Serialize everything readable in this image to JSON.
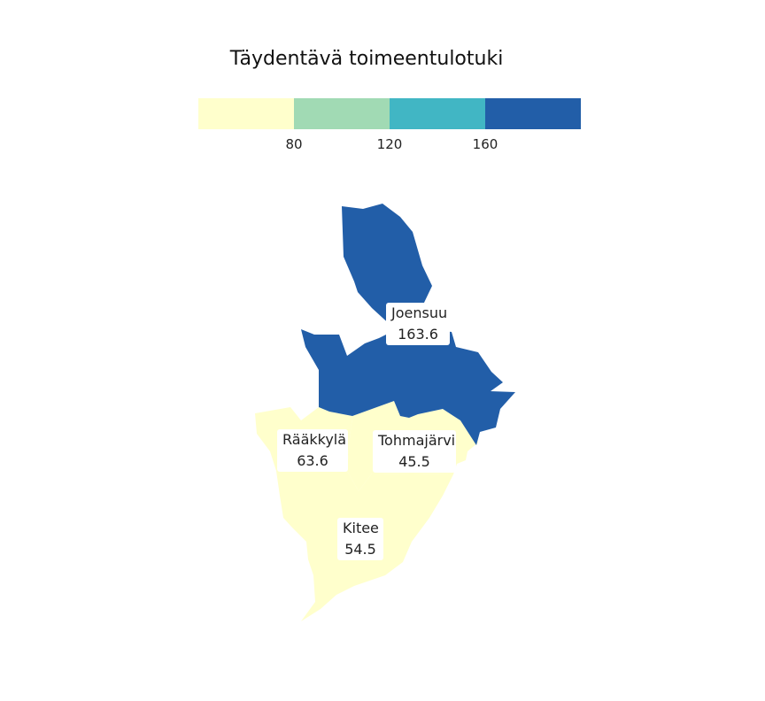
{
  "title": "Täydentävä toimeentulotuki",
  "legend": {
    "colors": [
      "#ffffcc",
      "#a1dab4",
      "#41b6c4",
      "#225ea8"
    ],
    "ticks": [
      "80",
      "120",
      "160"
    ]
  },
  "regions": [
    {
      "name": "Joensuu",
      "value": "163.6",
      "color": "#225ea8"
    },
    {
      "name": "Rääkkylä",
      "value": "63.6",
      "color": "#ffffcc"
    },
    {
      "name": "Tohmajärvi",
      "value": "45.5",
      "color": "#ffffcc"
    },
    {
      "name": "Kitee",
      "value": "54.5",
      "color": "#ffffcc"
    }
  ]
}
